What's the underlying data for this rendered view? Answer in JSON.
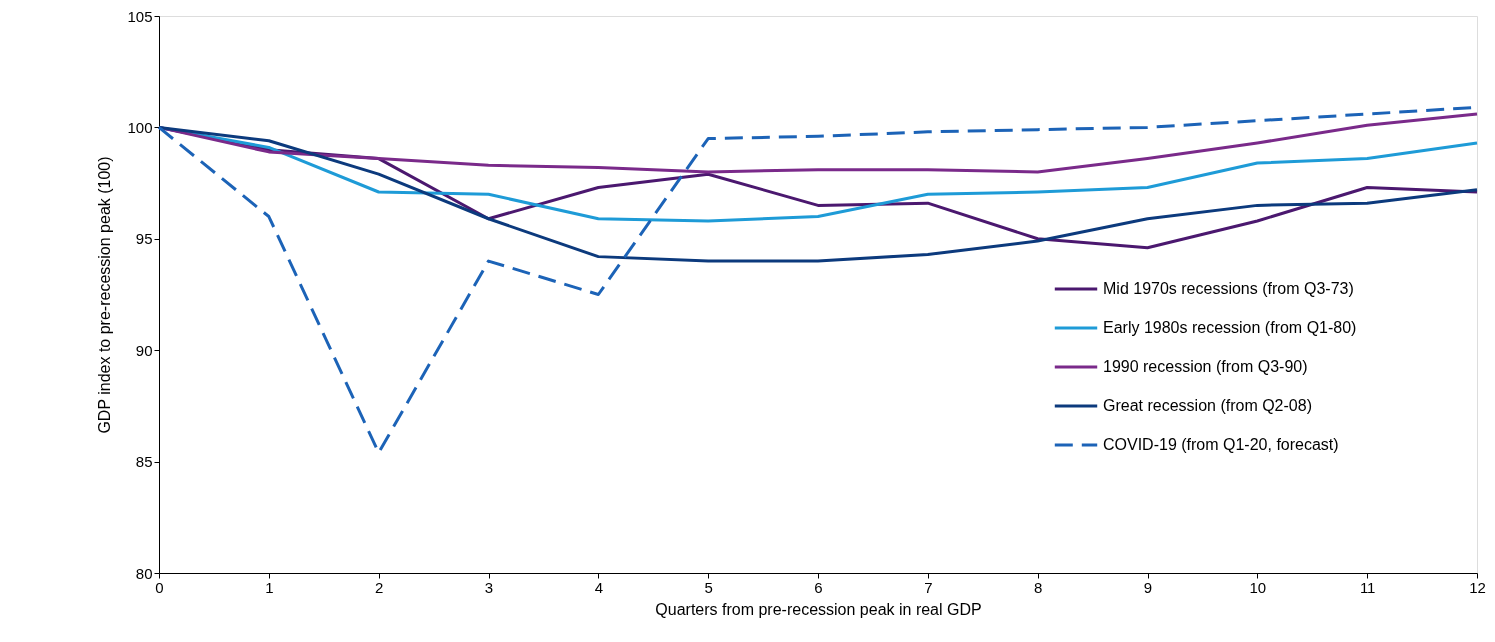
{
  "chart_data": {
    "type": "line",
    "xlabel": "Quarters from pre-recession peak in real GDP",
    "ylabel": "GDP index to pre-recession peak (100)",
    "x": [
      0,
      1,
      2,
      3,
      4,
      5,
      6,
      7,
      8,
      9,
      10,
      11,
      12
    ],
    "xlim": [
      0,
      12
    ],
    "xticks": [
      0,
      1,
      2,
      3,
      4,
      5,
      6,
      7,
      8,
      9,
      10,
      11,
      12
    ],
    "ylim": [
      80,
      105
    ],
    "yticks": [
      80,
      85,
      90,
      95,
      100,
      105
    ],
    "grid": false,
    "legend": "bottom right",
    "marker": "none",
    "series": [
      {
        "name": "Mid 1970s recessions (from Q3-73)",
        "color": "#4b186f",
        "line_style": "solid",
        "values": [
          100,
          99.0,
          98.6,
          95.9,
          97.3,
          97.9,
          96.5,
          96.6,
          95.0,
          94.6,
          95.8,
          97.3,
          97.1
        ]
      },
      {
        "name": "Early 1980s recession (from Q1-80)",
        "color": "#1e9bd7",
        "line_style": "solid",
        "values": [
          100,
          99.1,
          97.1,
          97.0,
          95.9,
          95.8,
          96.0,
          97.0,
          97.1,
          97.3,
          98.4,
          98.6,
          99.3
        ]
      },
      {
        "name": "1990 recession (from Q3-90)",
        "color": "#7a2a8a",
        "line_style": "solid",
        "values": [
          100,
          98.9,
          98.6,
          98.3,
          98.2,
          98.0,
          98.1,
          98.1,
          98.0,
          98.6,
          99.3,
          100.1,
          100.6
        ]
      },
      {
        "name": "Great recession (from Q2-08)",
        "color": "#0c3a7d",
        "line_style": "solid",
        "values": [
          100,
          99.4,
          97.9,
          95.9,
          94.2,
          94.0,
          94.0,
          94.3,
          94.9,
          95.9,
          96.5,
          96.6,
          97.2
        ]
      },
      {
        "name": "COVID-19 (from Q1-20, forecast)",
        "color": "#1c63b7",
        "line_style": "dashed",
        "values": [
          100,
          96.0,
          85.4,
          94.0,
          92.5,
          99.5,
          99.6,
          99.8,
          99.9,
          100.0,
          100.3,
          100.6,
          100.9
        ]
      }
    ]
  }
}
